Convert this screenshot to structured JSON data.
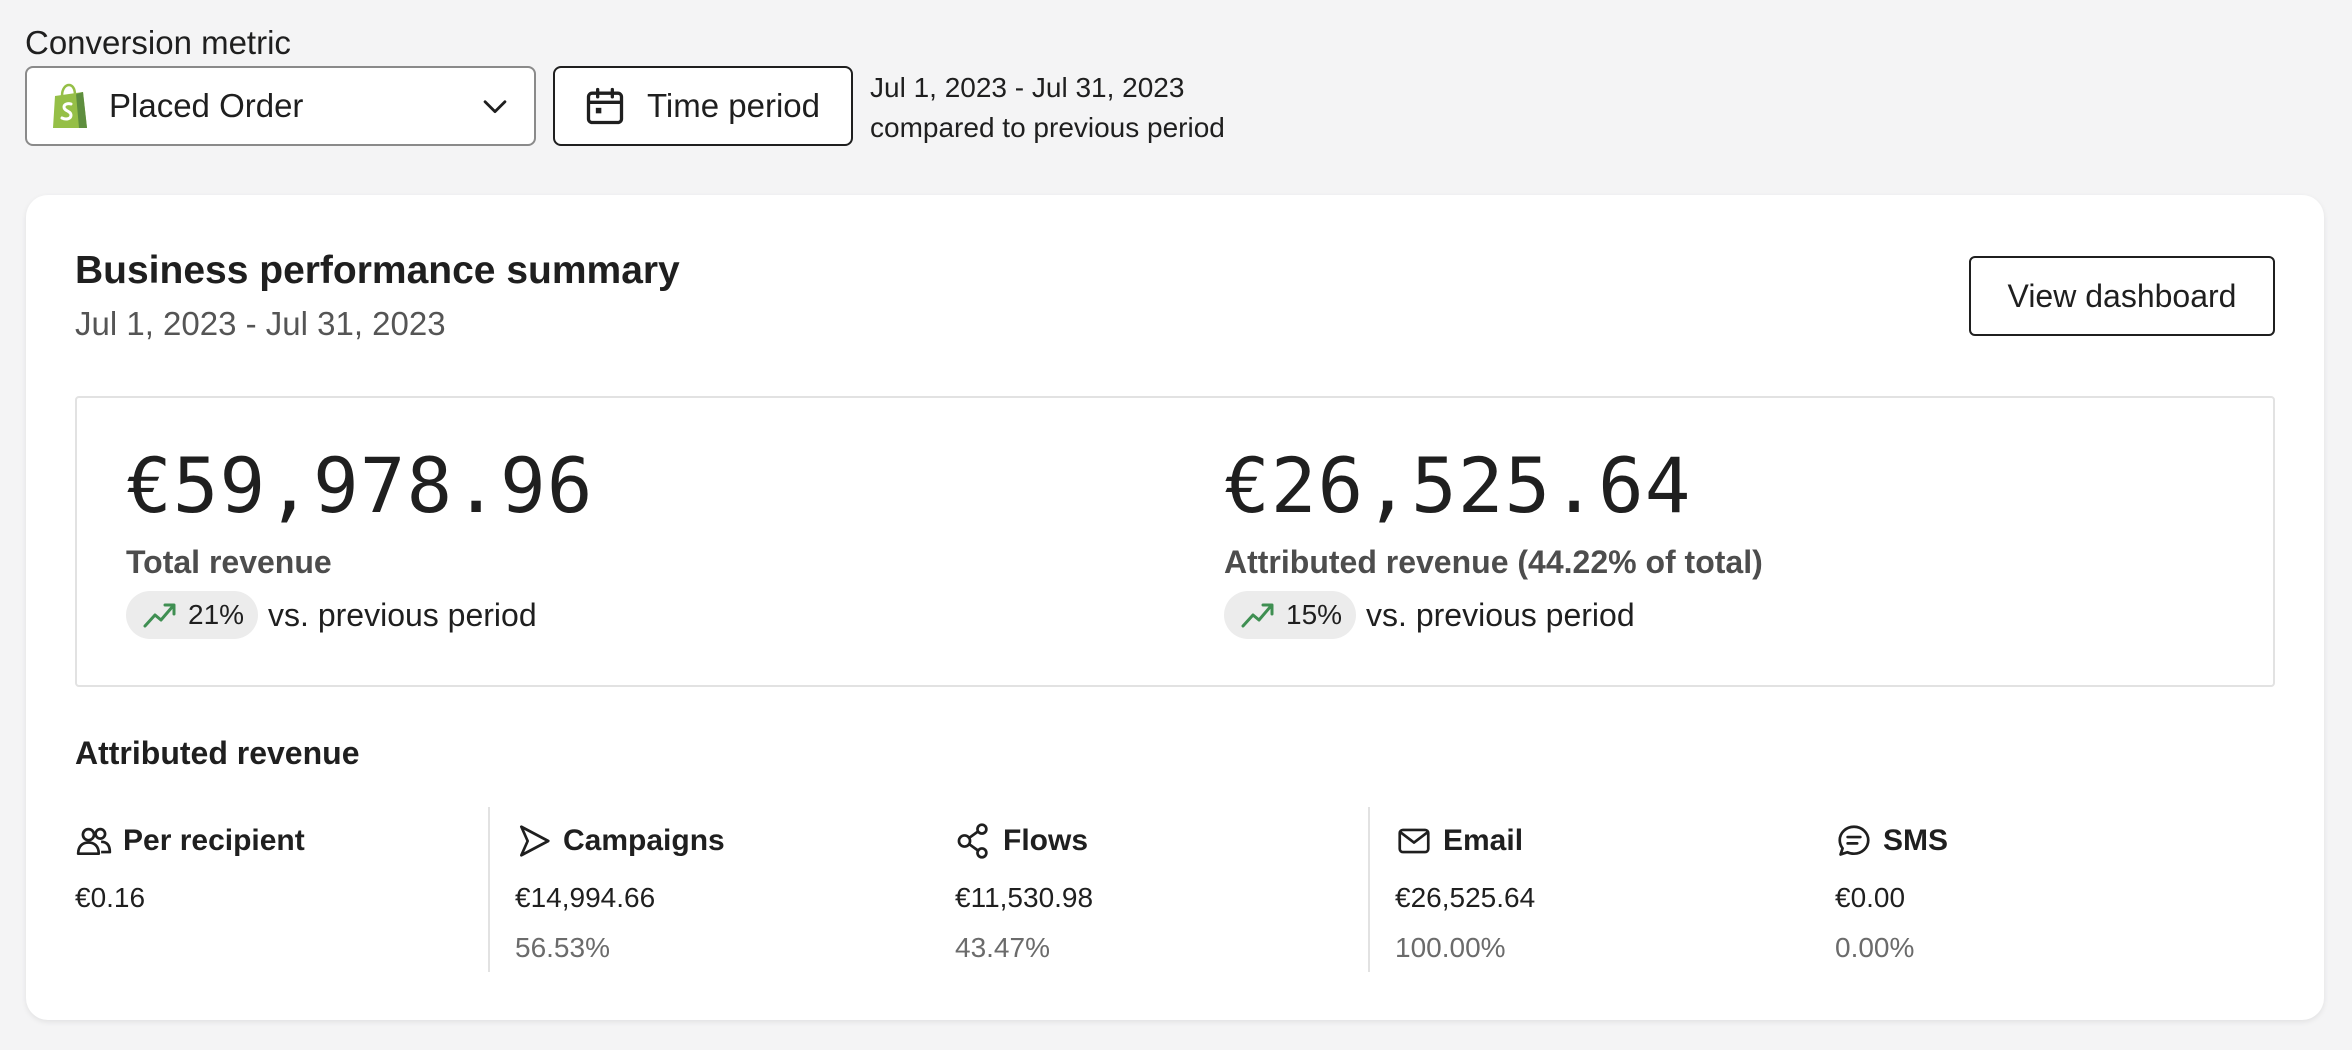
{
  "filters": {
    "label": "Conversion metric",
    "metric_value": "Placed Order",
    "time_button": "Time period",
    "range": "Jul 1, 2023 - Jul 31, 2023",
    "compare": "compared to previous period"
  },
  "card": {
    "title": "Business performance summary",
    "subtitle": "Jul 1, 2023 - Jul 31, 2023",
    "view_button": "View dashboard"
  },
  "summary": {
    "total": {
      "value": "€59,978.96",
      "label": "Total revenue",
      "change": "21%",
      "change_suffix": "vs. previous period"
    },
    "attributed": {
      "value": "€26,525.64",
      "label": "Attributed revenue (44.22% of total)",
      "change": "15%",
      "change_suffix": "vs. previous period"
    }
  },
  "attributed_section": {
    "title": "Attributed revenue",
    "columns": [
      {
        "label": "Per recipient",
        "value": "€0.16",
        "pct": "",
        "icon": "users-icon"
      },
      {
        "label": "Campaigns",
        "value": "€14,994.66",
        "pct": "56.53%",
        "icon": "send-icon"
      },
      {
        "label": "Flows",
        "value": "€11,530.98",
        "pct": "43.47%",
        "icon": "flow-icon"
      },
      {
        "label": "Email",
        "value": "€26,525.64",
        "pct": "100.00%",
        "icon": "mail-icon"
      },
      {
        "label": "SMS",
        "value": "€0.00",
        "pct": "0.00%",
        "icon": "sms-icon"
      }
    ]
  },
  "colors": {
    "trend_up": "#3f8f52",
    "shopify": "#95bf47"
  }
}
